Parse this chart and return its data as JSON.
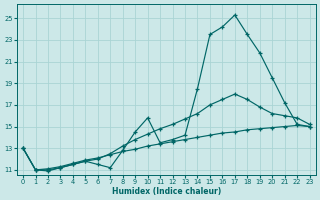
{
  "xlabel": "Humidex (Indice chaleur)",
  "bg_color": "#cce8e8",
  "grid_color": "#aad4d4",
  "line_color": "#006666",
  "xlim": [
    -0.5,
    23.5
  ],
  "ylim": [
    10.5,
    26.3
  ],
  "xticks": [
    0,
    1,
    2,
    3,
    4,
    5,
    6,
    7,
    8,
    9,
    10,
    11,
    12,
    13,
    14,
    15,
    16,
    17,
    18,
    19,
    20,
    21,
    22,
    23
  ],
  "yticks": [
    11,
    13,
    15,
    17,
    19,
    21,
    23,
    25
  ],
  "curve1_x": [
    0,
    1,
    2,
    3,
    4,
    5,
    6,
    7,
    8,
    9,
    10,
    11,
    12,
    13,
    14,
    15,
    16,
    17,
    18,
    19,
    20,
    21,
    22,
    23
  ],
  "curve1_y": [
    13,
    11,
    10.9,
    11.2,
    11.5,
    11.8,
    11.5,
    11.2,
    12.8,
    14.5,
    15.8,
    13.5,
    13.8,
    14.2,
    18.5,
    23.5,
    24.2,
    25.3,
    23.5,
    21.8,
    19.5,
    17.2,
    15.2,
    15.0
  ],
  "curve2_x": [
    0,
    1,
    2,
    3,
    4,
    5,
    6,
    7,
    8,
    9,
    10,
    11,
    12,
    13,
    14,
    15,
    16,
    17,
    18,
    19,
    20,
    21,
    22,
    23
  ],
  "curve2_y": [
    13,
    11,
    11.0,
    11.2,
    11.5,
    11.8,
    12.0,
    12.5,
    13.2,
    13.8,
    14.3,
    14.8,
    15.2,
    15.7,
    16.2,
    17.0,
    17.5,
    18.0,
    17.5,
    16.8,
    16.2,
    16.0,
    15.8,
    15.2
  ],
  "curve3_x": [
    0,
    1,
    2,
    3,
    4,
    5,
    6,
    7,
    8,
    9,
    10,
    11,
    12,
    13,
    14,
    15,
    16,
    17,
    18,
    19,
    20,
    21,
    22,
    23
  ],
  "curve3_y": [
    13,
    11,
    11.1,
    11.3,
    11.6,
    11.9,
    12.1,
    12.4,
    12.7,
    12.9,
    13.2,
    13.4,
    13.6,
    13.8,
    14.0,
    14.2,
    14.4,
    14.5,
    14.7,
    14.8,
    14.9,
    15.0,
    15.1,
    15.0
  ]
}
